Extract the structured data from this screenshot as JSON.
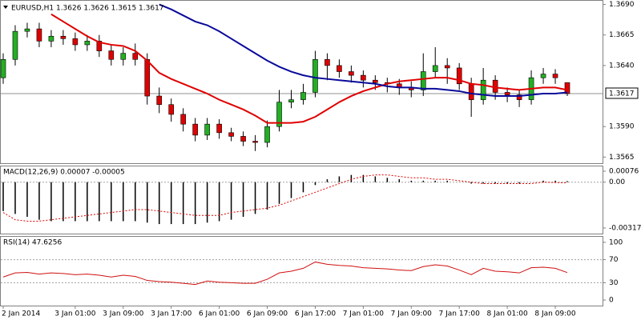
{
  "chart_data": [
    {
      "type": "candlestick",
      "title": "EURUSD,H1  1.3626 1.3626 1.3615 1.3617",
      "open": [
        1.363,
        1.3645,
        1.3668,
        1.367,
        1.366,
        1.3664,
        1.3662,
        1.3657,
        1.366,
        1.3652,
        1.3645,
        1.365,
        1.3645,
        1.3615,
        1.3608,
        1.36,
        1.3592,
        1.3583,
        1.3592,
        1.3585,
        1.3582,
        1.3578,
        1.3577,
        1.359,
        1.361,
        1.3612,
        1.3618,
        1.3645,
        1.364,
        1.3635,
        1.3632,
        1.3628,
        1.3626,
        1.3625,
        1.3622,
        1.362,
        1.3635,
        1.364,
        1.3638,
        1.3625,
        1.3612,
        1.3628,
        1.3618,
        1.3616,
        1.3612,
        1.363,
        1.3633,
        1.3626
      ],
      "high": [
        1.365,
        1.3673,
        1.3675,
        1.3675,
        1.3669,
        1.3669,
        1.3667,
        1.3665,
        1.3665,
        1.3657,
        1.3655,
        1.3658,
        1.365,
        1.3622,
        1.3613,
        1.3605,
        1.3597,
        1.3597,
        1.3596,
        1.3589,
        1.3586,
        1.3583,
        1.3595,
        1.362,
        1.362,
        1.3625,
        1.3652,
        1.365,
        1.3645,
        1.364,
        1.3636,
        1.3632,
        1.363,
        1.3629,
        1.3627,
        1.365,
        1.3655,
        1.3646,
        1.3642,
        1.363,
        1.3638,
        1.3632,
        1.3622,
        1.362,
        1.3636,
        1.3638,
        1.3637,
        1.3626
      ],
      "low": [
        1.3625,
        1.364,
        1.3663,
        1.3655,
        1.3655,
        1.3657,
        1.3652,
        1.3652,
        1.3647,
        1.364,
        1.364,
        1.364,
        1.3608,
        1.3601,
        1.3594,
        1.3586,
        1.3578,
        1.3579,
        1.358,
        1.3578,
        1.3574,
        1.357,
        1.3573,
        1.3586,
        1.3605,
        1.3608,
        1.3614,
        1.3628,
        1.363,
        1.3626,
        1.3622,
        1.362,
        1.3618,
        1.3616,
        1.3614,
        1.3615,
        1.363,
        1.3625,
        1.362,
        1.3598,
        1.3608,
        1.3612,
        1.361,
        1.3606,
        1.3608,
        1.3625,
        1.3625,
        1.3615
      ],
      "close": [
        1.3645,
        1.3668,
        1.367,
        1.366,
        1.3664,
        1.3662,
        1.3657,
        1.366,
        1.3652,
        1.3645,
        1.365,
        1.3645,
        1.3615,
        1.3608,
        1.36,
        1.3592,
        1.3583,
        1.3592,
        1.3585,
        1.3582,
        1.3578,
        1.3577,
        1.359,
        1.361,
        1.3612,
        1.3618,
        1.3645,
        1.364,
        1.3635,
        1.3632,
        1.3628,
        1.3626,
        1.3625,
        1.3622,
        1.362,
        1.3635,
        1.364,
        1.3638,
        1.3625,
        1.3612,
        1.3628,
        1.3618,
        1.3616,
        1.3612,
        1.363,
        1.3633,
        1.363,
        1.3617
      ],
      "up_color": "#22b022",
      "down_color": "#e00000",
      "series": [
        {
          "color": "#e00000",
          "values": [
            null,
            null,
            null,
            null,
            1.3682,
            1.3676,
            1.367,
            1.3664,
            1.3659,
            1.3657,
            1.3656,
            1.3652,
            1.3644,
            1.3634,
            1.3629,
            1.3625,
            1.3621,
            1.3617,
            1.3612,
            1.3608,
            1.3604,
            1.3599,
            1.3593,
            1.3593,
            1.3593,
            1.3594,
            1.3598,
            1.3604,
            1.361,
            1.3615,
            1.3619,
            1.3622,
            1.3625,
            1.3627,
            1.3628,
            1.3629,
            1.363,
            1.363,
            1.3628,
            1.3625,
            1.3624,
            1.3622,
            1.3621,
            1.362,
            1.3621,
            1.3622,
            1.3622,
            1.362
          ]
        },
        {
          "color": "#0a0a9a",
          "values": [
            null,
            null,
            null,
            null,
            null,
            null,
            null,
            null,
            null,
            null,
            null,
            null,
            null,
            1.369,
            1.3686,
            1.3681,
            1.3676,
            1.3673,
            1.3668,
            1.3662,
            1.3656,
            1.365,
            1.3644,
            1.3639,
            1.3635,
            1.3632,
            1.363,
            1.3629,
            1.3628,
            1.3627,
            1.3626,
            1.3625,
            1.3623,
            1.3622,
            1.3622,
            1.3621,
            1.3621,
            1.362,
            1.3619,
            1.3617,
            1.3616,
            1.3615,
            1.3615,
            1.3615,
            1.3616,
            1.3617,
            1.3617,
            1.3618
          ]
        }
      ],
      "last_price": 1.3617,
      "ylim": [
        1.356,
        1.3693
      ],
      "yticks": [
        {
          "value": 1.369,
          "label": "1.3690"
        },
        1.3665,
        {
          "value": 1.364,
          "label": "1.3640"
        },
        {
          "value": 1.359,
          "label": "1.3590"
        },
        1.3565
      ]
    },
    {
      "type": "macd",
      "title": "MACD(12,26,9) 0.00007 -0.00005",
      "series": [
        {
          "style": "histogram",
          "color": "#000000",
          "values": [
            -0.002,
            -0.0022,
            -0.0024,
            -0.0026,
            -0.0027,
            -0.0027,
            -0.0027,
            -0.0027,
            -0.0027,
            -0.0027,
            -0.0027,
            -0.0027,
            -0.0028,
            -0.0029,
            -0.0029,
            -0.0029,
            -0.0029,
            -0.0028,
            -0.0027,
            -0.0026,
            -0.0024,
            -0.0022,
            -0.0019,
            -0.0015,
            -0.0011,
            -0.0007,
            -0.0002,
            0.0002,
            0.0004,
            0.0005,
            0.0005,
            0.0004,
            0.0003,
            0.0002,
            0.0001,
            0.0001,
            0.0001,
            0.0001,
            0.0,
            -0.0001,
            -0.0001,
            -0.0001,
            -0.0001,
            -0.0001,
            0.0,
            0.0001,
            0.0001,
            7e-05
          ]
        },
        {
          "style": "dotted",
          "color": "#e00000",
          "values": [
            -0.0021,
            -0.0026,
            -0.0027,
            -0.0027,
            -0.0026,
            -0.0025,
            -0.0024,
            -0.0023,
            -0.0022,
            -0.0021,
            -0.002,
            -0.0019,
            -0.0019,
            -0.002,
            -0.0021,
            -0.0022,
            -0.0023,
            -0.0023,
            -0.0023,
            -0.0021,
            -0.002,
            -0.0019,
            -0.0018,
            -0.0016,
            -0.0013,
            -0.001,
            -0.0007,
            -0.0004,
            -0.0001,
            0.0002,
            0.0004,
            0.0005,
            0.0005,
            0.0004,
            0.0003,
            0.0003,
            0.0002,
            0.0002,
            0.0001,
            0.0,
            -0.0001,
            -0.0001,
            -0.0001,
            -0.0001,
            -0.0001,
            0.0,
            -3e-05,
            -5e-05
          ]
        }
      ],
      "ylim": [
        -0.00356,
        0.00109
      ],
      "yticks": [
        0.00076,
        {
          "value": 0,
          "label": "0.00"
        },
        -0.00317
      ]
    },
    {
      "type": "line",
      "title": "RSI(14) 47.6256",
      "series": [
        {
          "color": "#d01010",
          "values": [
            40,
            47,
            48,
            45,
            47,
            46,
            44,
            45,
            43,
            40,
            43,
            41,
            34,
            32,
            31,
            29,
            27,
            33,
            31,
            30,
            29,
            29,
            36,
            47,
            50,
            55,
            66,
            62,
            60,
            59,
            56,
            55,
            54,
            52,
            51,
            58,
            61,
            59,
            52,
            44,
            55,
            50,
            49,
            47,
            56,
            57,
            55,
            47.6256
          ]
        }
      ],
      "categories": [
        "2 Jan 2014",
        null,
        null,
        null,
        null,
        null,
        "3 Jan 01:00",
        null,
        null,
        null,
        "3 Jan 09:00",
        null,
        null,
        null,
        "3 Jan 17:00",
        null,
        null,
        null,
        "6 Jan 01:00",
        null,
        null,
        null,
        "6 Jan 09:00",
        null,
        null,
        null,
        "6 Jan 17:00",
        null,
        null,
        null,
        "7 Jan 01:00",
        null,
        null,
        null,
        "7 Jan 09:00",
        null,
        null,
        null,
        "7 Jan 17:00",
        null,
        null,
        null,
        "8 Jan 01:00",
        null,
        null,
        null,
        "8 Jan 09:00",
        null
      ],
      "ylim": [
        -9.6,
        109.6
      ],
      "yticks": [
        100,
        70,
        30,
        0
      ]
    }
  ]
}
